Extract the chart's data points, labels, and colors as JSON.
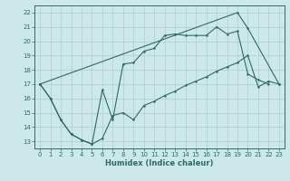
{
  "background_color": "#cce8e8",
  "grid_color": "#aacfcf",
  "line_color": "#2d6b6b",
  "xlabel": "Humidex (Indice chaleur)",
  "xlim": [
    -0.5,
    23.5
  ],
  "ylim": [
    12.5,
    22.5
  ],
  "yticks": [
    13,
    14,
    15,
    16,
    17,
    18,
    19,
    20,
    21,
    22
  ],
  "xticks": [
    0,
    1,
    2,
    3,
    4,
    5,
    6,
    7,
    8,
    9,
    10,
    11,
    12,
    13,
    14,
    15,
    16,
    17,
    18,
    19,
    20,
    21,
    22,
    23
  ],
  "line1_x": [
    0,
    1,
    2,
    3,
    4,
    5,
    6,
    7,
    8,
    9,
    10,
    11,
    12,
    13,
    14,
    15,
    16,
    17,
    18,
    19,
    20,
    21,
    22,
    23
  ],
  "line1_y": [
    17.0,
    16.0,
    14.5,
    13.5,
    13.1,
    12.8,
    13.2,
    14.8,
    15.0,
    14.5,
    15.5,
    15.8,
    16.2,
    16.5,
    16.9,
    17.2,
    17.5,
    17.9,
    18.2,
    18.5,
    19.0,
    16.8,
    17.2,
    17.0
  ],
  "line2_x": [
    0,
    1,
    2,
    3,
    4,
    5,
    6,
    7,
    8,
    9,
    10,
    11,
    12,
    13,
    14,
    15,
    16,
    17,
    18,
    19,
    20,
    21,
    22
  ],
  "line2_y": [
    17.0,
    16.0,
    14.5,
    13.5,
    13.1,
    12.8,
    16.6,
    14.5,
    18.4,
    18.5,
    19.3,
    19.5,
    20.4,
    20.5,
    20.4,
    20.4,
    20.4,
    21.0,
    20.5,
    20.7,
    17.7,
    17.3,
    17.0
  ],
  "line3_x": [
    0,
    19,
    20,
    23
  ],
  "line3_y": [
    17.0,
    22.0,
    20.9,
    17.0
  ]
}
